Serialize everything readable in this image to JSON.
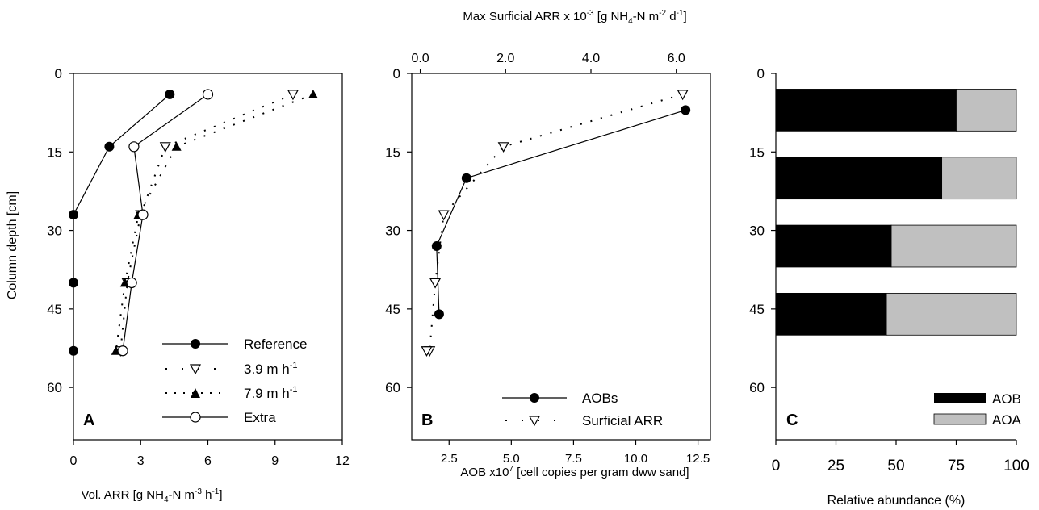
{
  "chart_data": [
    {
      "panel": "A",
      "type": "line",
      "xlabel": "Vol. ARR [g NH4-N m-3 h-1]",
      "ylabel": "Column depth [cm]",
      "xlim": [
        0,
        12
      ],
      "ylim": [
        70,
        0
      ],
      "xticks": [
        "0",
        "3",
        "6",
        "9",
        "12"
      ],
      "yticks": [
        "0",
        "15",
        "30",
        "45",
        "60"
      ],
      "legend_position": "bottom-right",
      "series": [
        {
          "name": "Reference",
          "marker": "filled-circle",
          "line": "solid",
          "x": [
            4.3,
            1.6,
            0.0,
            0.0,
            0.0
          ],
          "y": [
            4,
            14,
            27,
            40,
            53
          ]
        },
        {
          "name": "3.9 m h-1",
          "marker": "open-triangle-down",
          "line": "dotted",
          "x": [
            9.8,
            4.1,
            3.0,
            2.4,
            2.1
          ],
          "y": [
            4,
            14,
            27,
            40,
            53
          ]
        },
        {
          "name": "7.9 m h-1",
          "marker": "filled-triangle-up",
          "line": "dotted",
          "x": [
            10.7,
            4.6,
            2.9,
            2.3,
            1.9
          ],
          "y": [
            4,
            14,
            27,
            40,
            53
          ]
        },
        {
          "name": "Extra",
          "marker": "open-circle",
          "line": "solid",
          "x": [
            6.0,
            2.7,
            3.1,
            2.6,
            2.2
          ],
          "y": [
            4,
            14,
            27,
            40,
            53
          ]
        }
      ]
    },
    {
      "panel": "B",
      "type": "line",
      "xlabel": "AOB x10^7 [cell copies per gram dww sand]",
      "x2label": "Max Surficial ARR x 10^-3 [g NH4-N m-2 d-1]",
      "ylabel": "",
      "xlim": [
        1,
        13
      ],
      "x2lim": [
        -0.2,
        6.8
      ],
      "ylim": [
        70,
        0
      ],
      "xticks": [
        "2.5",
        "5.0",
        "7.5",
        "10.0",
        "12.5"
      ],
      "x2ticks": [
        "0.0",
        "2.0",
        "4.0",
        "6.0"
      ],
      "yticks": [
        "0",
        "15",
        "30",
        "45",
        "60"
      ],
      "legend_position": "bottom-right",
      "series": [
        {
          "name": "AOBs",
          "axis": "bottom",
          "marker": "filled-circle",
          "line": "solid",
          "x": [
            12.0,
            3.2,
            2.0,
            2.1
          ],
          "y": [
            7,
            20,
            33,
            46
          ]
        },
        {
          "name": "Surficial ARR",
          "axis": "top",
          "marker": "open-triangle-down",
          "line": "dotted",
          "x": [
            6.15,
            1.95,
            0.55,
            0.35,
            0.22,
            0.15
          ],
          "y": [
            4,
            14,
            27,
            40,
            53,
            53
          ]
        }
      ]
    },
    {
      "panel": "C",
      "type": "bar",
      "orientation": "horizontal",
      "stacked": true,
      "xlabel": "Relative abundance (%)",
      "xlim": [
        0,
        100
      ],
      "ylim": [
        70,
        0
      ],
      "xticks": [
        "0",
        "25",
        "50",
        "75",
        "100"
      ],
      "yticks": [
        "0",
        "15",
        "30",
        "45",
        "60"
      ],
      "legend_position": "bottom-right",
      "bars": [
        {
          "y_top": 3,
          "y_bottom": 11,
          "AOB": 75,
          "AOA": 25
        },
        {
          "y_top": 16,
          "y_bottom": 24,
          "AOB": 69,
          "AOA": 31
        },
        {
          "y_top": 29,
          "y_bottom": 37,
          "AOB": 48,
          "AOA": 52
        },
        {
          "y_top": 42,
          "y_bottom": 50,
          "AOB": 46,
          "AOA": 54
        }
      ],
      "series": [
        {
          "name": "AOB",
          "color": "#000000"
        },
        {
          "name": "AOA",
          "color": "#c0c0c0"
        }
      ]
    }
  ],
  "text": {
    "top_label_main": "Max Surficial ARR x 10",
    "top_label_exp": "-3",
    "top_label_rest_a": " [g NH",
    "top_label_sub": "4",
    "top_label_rest_b": "-N m",
    "top_label_exp2": "-2",
    "top_label_rest_c": " d",
    "top_label_exp3": "-1",
    "top_label_end": "]",
    "a_ylabel": "Column depth [cm]",
    "a_xlabel_main": "Vol. ARR [g NH",
    "a_xlabel_sub": "4",
    "a_xlabel_mid": "-N m",
    "a_xlabel_exp": "-3",
    "a_xlabel_mid2": " h",
    "a_xlabel_exp2": "-1",
    "a_xlabel_end": "]",
    "b_xlabel_main": "AOB x10",
    "b_xlabel_exp": "7",
    "b_xlabel_end": " [cell copies per gram dww sand]",
    "c_xlabel": "Relative abundance (%)",
    "panel_a": "A",
    "panel_b": "B",
    "panel_c": "C",
    "leg_ref": "Reference",
    "leg_39": "3.9 m h",
    "leg_39_exp": "-1",
    "leg_79": "7.9 m h",
    "leg_79_exp": "-1",
    "leg_extra": "Extra",
    "leg_aobs": "AOBs",
    "leg_surf": "Surficial ARR",
    "leg_aob": "AOB",
    "leg_aoa": "AOA"
  }
}
